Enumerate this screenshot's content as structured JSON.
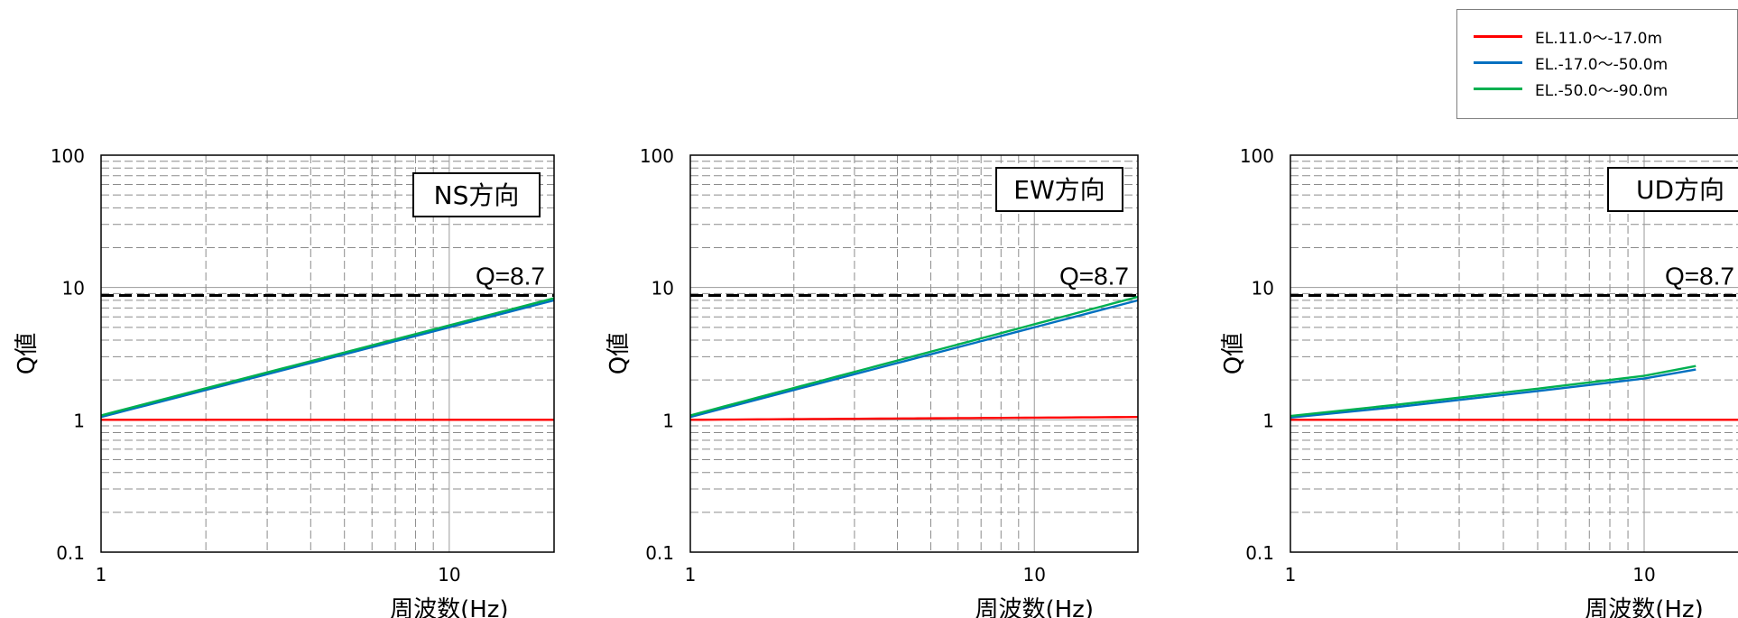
{
  "legend": {
    "items": [
      {
        "label": "EL.11.0～-17.0m",
        "color": "#ff0000"
      },
      {
        "label": "EL.-17.0～-50.0m",
        "color": "#0070c0"
      },
      {
        "label": "EL.-50.0～-90.0m",
        "color": "#00b050"
      }
    ]
  },
  "chart_data": [
    {
      "type": "line",
      "title": "NS方向",
      "xlabel": "周波数(Hz)",
      "ylabel": "Q値",
      "xscale": "log",
      "yscale": "log",
      "xlim": [
        1,
        20
      ],
      "ylim": [
        0.1,
        100
      ],
      "xticks": [
        "1",
        "10"
      ],
      "yticks": [
        "0.1",
        "1",
        "10",
        "100"
      ],
      "grid": true,
      "reference_line": {
        "value": 8.7,
        "label": "Q=8.7",
        "style": "dashed",
        "color": "#000000"
      },
      "series": [
        {
          "name": "EL.11.0～-17.0m",
          "color": "#ff0000",
          "x": [
            1,
            20
          ],
          "y": [
            1.0,
            1.0
          ]
        },
        {
          "name": "EL.-17.0～-50.0m",
          "color": "#0070c0",
          "x": [
            1,
            20
          ],
          "y": [
            1.05,
            8.0
          ]
        },
        {
          "name": "EL.-50.0～-90.0m",
          "color": "#00b050",
          "x": [
            1,
            20
          ],
          "y": [
            1.08,
            8.3
          ]
        }
      ]
    },
    {
      "type": "line",
      "title": "EW方向",
      "xlabel": "周波数(Hz)",
      "ylabel": "Q値",
      "xscale": "log",
      "yscale": "log",
      "xlim": [
        1,
        20
      ],
      "ylim": [
        0.1,
        100
      ],
      "xticks": [
        "1",
        "10"
      ],
      "yticks": [
        "0.1",
        "1",
        "10",
        "100"
      ],
      "grid": true,
      "reference_line": {
        "value": 8.7,
        "label": "Q=8.7",
        "style": "dashed",
        "color": "#000000"
      },
      "series": [
        {
          "name": "EL.11.0～-17.0m",
          "color": "#ff0000",
          "x": [
            1,
            20
          ],
          "y": [
            1.0,
            1.05
          ]
        },
        {
          "name": "EL.-17.0～-50.0m",
          "color": "#0070c0",
          "x": [
            1,
            20
          ],
          "y": [
            1.05,
            8.0
          ]
        },
        {
          "name": "EL.-50.0～-90.0m",
          "color": "#00b050",
          "x": [
            1,
            20
          ],
          "y": [
            1.08,
            8.5
          ]
        }
      ]
    },
    {
      "type": "line",
      "title": "UD方向",
      "xlabel": "周波数(Hz)",
      "ylabel": "Q値",
      "xscale": "log",
      "yscale": "log",
      "xlim": [
        1,
        20
      ],
      "ylim": [
        0.1,
        100
      ],
      "xticks": [
        "1",
        "10"
      ],
      "yticks": [
        "0.1",
        "1",
        "10",
        "100"
      ],
      "grid": true,
      "reference_line": {
        "value": 8.7,
        "label": "Q=8.7",
        "style": "dashed",
        "color": "#000000"
      },
      "series": [
        {
          "name": "EL.11.0～-17.0m",
          "color": "#ff0000",
          "x": [
            1,
            20
          ],
          "y": [
            1.0,
            1.0
          ]
        },
        {
          "name": "EL.-17.0～-50.0m",
          "color": "#0070c0",
          "x": [
            1,
            2,
            5,
            10,
            14
          ],
          "y": [
            1.04,
            1.25,
            1.65,
            2.05,
            2.4
          ]
        },
        {
          "name": "EL.-50.0～-90.0m",
          "color": "#00b050",
          "x": [
            1,
            2,
            5,
            10,
            14
          ],
          "y": [
            1.07,
            1.3,
            1.72,
            2.15,
            2.55
          ]
        }
      ]
    }
  ]
}
